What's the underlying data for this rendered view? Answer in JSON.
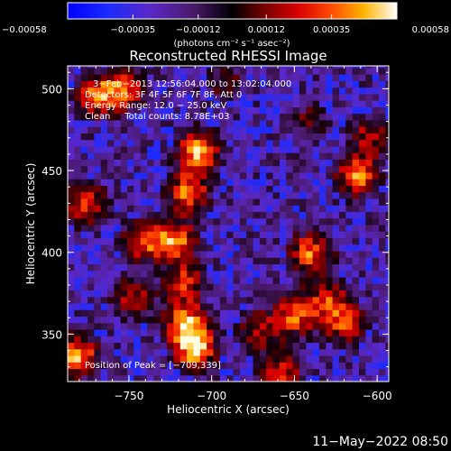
{
  "chart_data": {
    "type": "heatmap",
    "title": "Reconstructed RHESSI Image",
    "xlabel": "Heliocentric X (arcsec)",
    "ylabel": "Heliocentric Y (arcsec)",
    "xlim": [
      -787,
      -593
    ],
    "ylim": [
      321,
      514
    ],
    "xticks": [
      -750,
      -700,
      -650,
      -600
    ],
    "xtick_labels": [
      "−750",
      "−700",
      "−650",
      "−600"
    ],
    "yticks": [
      350,
      400,
      450,
      500
    ],
    "ytick_labels": [
      "350",
      "400",
      "450",
      "500"
    ],
    "colorbar": {
      "ticks": [
        -0.00058,
        -0.00035,
        -0.00012,
        0.00012,
        0.00035,
        0.00058
      ],
      "tick_labels": [
        "−0.00058",
        "−0.00035",
        "−0.00012",
        "0.00012",
        "0.00035",
        "0.00058"
      ],
      "unit_label": "(photons cm⁻² s⁻¹ asec⁻²)",
      "range": [
        -0.00058,
        0.00058
      ]
    },
    "annotations": [
      "3−Feb−2013 12:56:04.000 to 13:02:04.000",
      "Detectors: 3F 4F 5F 6F 7F 8F, Att 0",
      "Energy Range: 12.0 − 25.0 keV",
      "Clean     Total counts: 8.78E+03"
    ],
    "peak_label": "Position of Peak = [−709,339]",
    "peak": [
      -709,
      339
    ],
    "intensity_features": [
      {
        "x": -708,
        "y": 462,
        "level": 1.0
      },
      {
        "x": -714,
        "y": 437,
        "level": 0.82
      },
      {
        "x": -722,
        "y": 407,
        "level": 0.86
      },
      {
        "x": -716,
        "y": 382,
        "level": 0.66
      },
      {
        "x": -716,
        "y": 357,
        "level": 0.9
      },
      {
        "x": -710,
        "y": 341,
        "level": 1.0
      },
      {
        "x": -769,
        "y": 496,
        "level": 0.8
      },
      {
        "x": -752,
        "y": 500,
        "level": 0.7
      },
      {
        "x": -776,
        "y": 430,
        "level": 0.75
      },
      {
        "x": -742,
        "y": 407,
        "level": 0.72
      },
      {
        "x": -748,
        "y": 372,
        "level": 0.6
      },
      {
        "x": -781,
        "y": 337,
        "level": 0.95
      },
      {
        "x": -672,
        "y": 352,
        "level": 0.55
      },
      {
        "x": -658,
        "y": 327,
        "level": 0.65
      },
      {
        "x": -650,
        "y": 362,
        "level": 0.8
      },
      {
        "x": -640,
        "y": 400,
        "level": 0.82
      },
      {
        "x": -630,
        "y": 372,
        "level": 0.6
      },
      {
        "x": -620,
        "y": 357,
        "level": 0.7
      },
      {
        "x": -612,
        "y": 447,
        "level": 0.85
      },
      {
        "x": -604,
        "y": 472,
        "level": 0.55
      },
      {
        "x": -640,
        "y": 480,
        "level": 0.4
      },
      {
        "x": -692,
        "y": 505,
        "level": 0.4
      }
    ]
  },
  "date_stamp": "11−May−2022 08:50"
}
